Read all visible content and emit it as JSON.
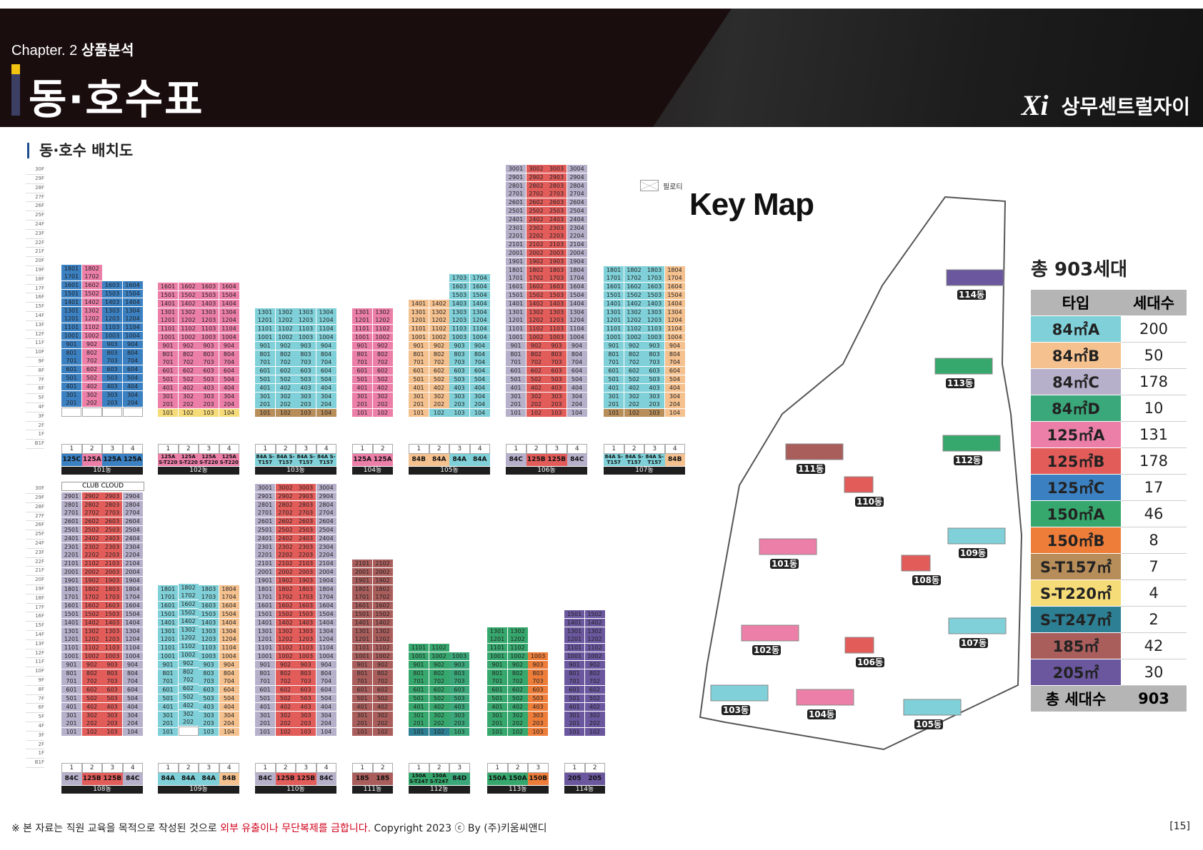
{
  "header": {
    "chapter_prefix": "Chapter. 2",
    "chapter_title": "상품분석",
    "title": "동·호수표",
    "brand_logo": "Xi",
    "brand_name": "상무센트럴자이"
  },
  "section_title": "동·호수 배치도",
  "floor_labels_top": [
    "30F",
    "29F",
    "28F",
    "27F",
    "26F",
    "25F",
    "24F",
    "23F",
    "22F",
    "21F",
    "20F",
    "19F",
    "18F",
    "17F",
    "16F",
    "15F",
    "14F",
    "13F",
    "12F",
    "11F",
    "10F",
    "9F",
    "8F",
    "7F",
    "6F",
    "5F",
    "4F",
    "3F",
    "2F",
    "1F",
    "B1F"
  ],
  "piloti_label": "필로티",
  "club_label": "CLUB CLOUD",
  "type_colors": {
    "84A": "#7fd0d8",
    "84B": "#f5c18f",
    "84C": "#b7b0cb",
    "84D": "#3aa87a",
    "125A": "#ec7fa7",
    "125B": "#e25c5a",
    "125C": "#3b80c1",
    "150A": "#36a86d",
    "150B": "#ee7d3a",
    "ST157": "#b78d5a",
    "ST220": "#f6db79",
    "ST247": "#2d7f93",
    "185": "#a95e5c",
    "205": "#6a579e",
    "none": "#ffffff"
  },
  "buildings": [
    {
      "name": "101동",
      "units": [
        "1",
        "2",
        "3",
        "4"
      ],
      "types": [
        "125C",
        "125A",
        "125A",
        "125A"
      ],
      "cols": [
        [
          "125C",
          18,
          "piloti"
        ],
        [
          "125A",
          18,
          "piloti"
        ],
        [
          "125C",
          16,
          "piloti"
        ],
        [
          "125C",
          16,
          "piloti"
        ]
      ]
    },
    {
      "name": "102동",
      "units": [
        "1",
        "2",
        "3",
        "4"
      ],
      "types": [
        "125A\nS-T220",
        "125A\nS-T220",
        "125A\nS-T220",
        "125A\nS-T220"
      ],
      "cols": [
        [
          "125A",
          16,
          "ST220"
        ],
        [
          "125A",
          16,
          "ST220"
        ],
        [
          "125A",
          16,
          "ST220"
        ],
        [
          "125A",
          16,
          "ST220"
        ]
      ]
    },
    {
      "name": "103동",
      "units": [
        "1",
        "2",
        "3",
        "4"
      ],
      "types": [
        "84A\nS-T157",
        "84A\nS-T157",
        "84A\nS-T157",
        "84A\nS-T157"
      ],
      "cols": [
        [
          "84A",
          13,
          "ST157"
        ],
        [
          "84A",
          13,
          "ST157"
        ],
        [
          "84A",
          13,
          "ST157"
        ],
        [
          "84A",
          13,
          "ST157"
        ]
      ]
    },
    {
      "name": "104동",
      "units": [
        "1",
        "2"
      ],
      "types": [
        "125A",
        "125A"
      ],
      "cols": [
        [
          "125A",
          13,
          "125A"
        ],
        [
          "125A",
          13,
          "125A"
        ]
      ]
    },
    {
      "name": "105동",
      "units": [
        "1",
        "2",
        "3",
        "4"
      ],
      "types": [
        "84B",
        "84A",
        "84A",
        "84A"
      ],
      "cols": [
        [
          "84B",
          14,
          "84B"
        ],
        [
          "84B",
          14,
          "84A"
        ],
        [
          "84A",
          17,
          "84A"
        ],
        [
          "84A",
          17,
          "84A"
        ]
      ]
    },
    {
      "name": "106동",
      "units": [
        "1",
        "2",
        "3",
        "4"
      ],
      "types": [
        "84C",
        "125B",
        "125B",
        "84C"
      ],
      "cols": [
        [
          "84C",
          30,
          "84C"
        ],
        [
          "125B",
          30,
          "125B"
        ],
        [
          "125B",
          30,
          "125B"
        ],
        [
          "84C",
          30,
          "84C"
        ]
      ]
    },
    {
      "name": "107동",
      "units": [
        "1",
        "2",
        "3",
        "4"
      ],
      "types": [
        "84A\nS-T157",
        "84A\nS-T157",
        "84A\nS-T157",
        "84B"
      ],
      "cols": [
        [
          "84A",
          18,
          "ST157"
        ],
        [
          "84A",
          18,
          "ST157"
        ],
        [
          "84A",
          18,
          "ST157"
        ],
        [
          "84B",
          18,
          "84B"
        ]
      ]
    },
    {
      "name": "108동",
      "units": [
        "1",
        "2",
        "3",
        "4"
      ],
      "types": [
        "84C",
        "125B",
        "125B",
        "84C"
      ],
      "cols": [
        [
          "84C",
          29,
          "84C"
        ],
        [
          "125B",
          29,
          "125B"
        ],
        [
          "125B",
          29,
          "125B"
        ],
        [
          "84C",
          29,
          "84C"
        ]
      ]
    },
    {
      "name": "109동",
      "units": [
        "1",
        "2",
        "3",
        "4"
      ],
      "types": [
        "84A",
        "84A",
        "84A",
        "84B"
      ],
      "cols": [
        [
          "84A",
          18,
          "84A"
        ],
        [
          "84A",
          18,
          "piloti"
        ],
        [
          "84A",
          18,
          "84A"
        ],
        [
          "84B",
          18,
          "84B"
        ]
      ]
    },
    {
      "name": "110동",
      "units": [
        "1",
        "2",
        "3",
        "4"
      ],
      "types": [
        "84C",
        "125B",
        "125B",
        "84C"
      ],
      "cols": [
        [
          "84C",
          30,
          "84C"
        ],
        [
          "125B",
          30,
          "125B"
        ],
        [
          "125B",
          30,
          "125B"
        ],
        [
          "84C",
          30,
          "84C"
        ]
      ]
    },
    {
      "name": "111동",
      "units": [
        "1",
        "2"
      ],
      "types": [
        "185",
        "185"
      ],
      "cols": [
        [
          "185",
          21,
          "185"
        ],
        [
          "185",
          21,
          "185"
        ]
      ]
    },
    {
      "name": "112동",
      "units": [
        "1",
        "2",
        "3"
      ],
      "types": [
        "150A\nS-T247",
        "150A\nS-T247",
        "84D"
      ],
      "cols": [
        [
          "150A",
          11,
          "ST247"
        ],
        [
          "150A",
          11,
          "ST247"
        ],
        [
          "84D",
          10,
          "84D"
        ]
      ]
    },
    {
      "name": "113동",
      "units": [
        "1",
        "2",
        "3"
      ],
      "types": [
        "150A",
        "150A",
        "150B"
      ],
      "cols": [
        [
          "150A",
          13,
          "150A"
        ],
        [
          "150A",
          13,
          "150A"
        ],
        [
          "150B",
          10,
          "150B"
        ]
      ]
    },
    {
      "name": "114동",
      "units": [
        "1",
        "2"
      ],
      "types": [
        "205",
        "205"
      ],
      "cols": [
        [
          "205",
          15,
          "205"
        ],
        [
          "205",
          15,
          "205"
        ]
      ]
    }
  ],
  "keymap": {
    "title": "Key Map",
    "total_label": "총 903세대",
    "legend_head": [
      "타입",
      "세대수"
    ],
    "legend": [
      {
        "type": "84㎡A",
        "count": "200",
        "color": "#7fd0d8"
      },
      {
        "type": "84㎡B",
        "count": "50",
        "color": "#f5c18f"
      },
      {
        "type": "84㎡C",
        "count": "178",
        "color": "#b7b0cb"
      },
      {
        "type": "84㎡D",
        "count": "10",
        "color": "#3aa87a"
      },
      {
        "type": "125㎡A",
        "count": "131",
        "color": "#ec7fa7"
      },
      {
        "type": "125㎡B",
        "count": "178",
        "color": "#e25c5a"
      },
      {
        "type": "125㎡C",
        "count": "17",
        "color": "#3b80c1"
      },
      {
        "type": "150㎡A",
        "count": "46",
        "color": "#36a86d"
      },
      {
        "type": "150㎡B",
        "count": "8",
        "color": "#ee7d3a"
      },
      {
        "type": "S-T157㎡",
        "count": "7",
        "color": "#b78d5a"
      },
      {
        "type": "S-T220㎡",
        "count": "4",
        "color": "#f6db79"
      },
      {
        "type": "S-T247㎡",
        "count": "2",
        "color": "#2d7f93"
      },
      {
        "type": "185㎡",
        "count": "42",
        "color": "#a95e5c"
      },
      {
        "type": "205㎡",
        "count": "30",
        "color": "#6a579e"
      }
    ],
    "total_row": [
      "총 세대수",
      "903"
    ],
    "map_labels": [
      "101동",
      "102동",
      "103동",
      "104동",
      "105동",
      "106동",
      "107동",
      "108동",
      "109동",
      "110동",
      "111동",
      "112동",
      "113동",
      "114동"
    ]
  },
  "footer": {
    "note_prefix": "※ 본 자료는 직원 교육을 목적으로 작성된 것으로 ",
    "note_red": "외부 유출이나 무단복제를 금합니다.",
    "note_suffix": " Copyright 2023 ⓒ By (주)키움씨앤디",
    "page": "[15]"
  }
}
